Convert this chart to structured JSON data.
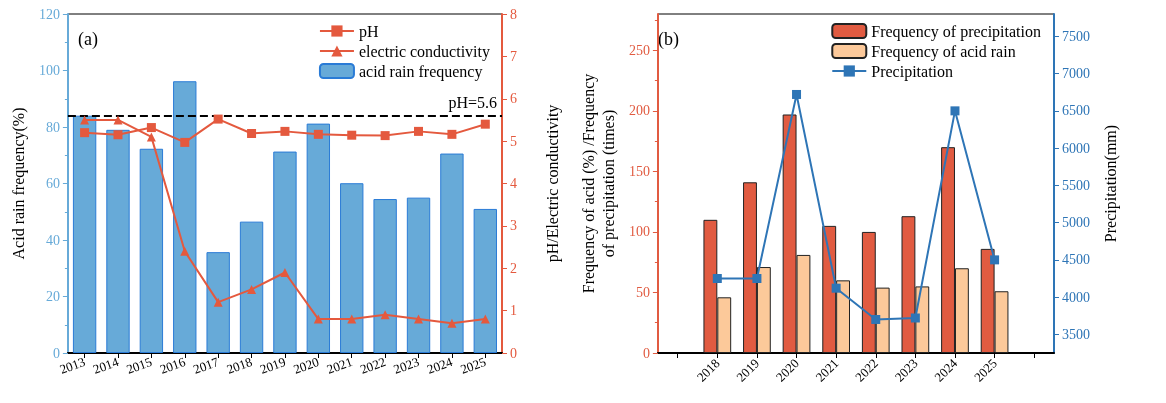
{
  "chart_data": [
    {
      "type": "bar",
      "categories": [
        "2013",
        "2014",
        "2015",
        "2016",
        "2017",
        "2018",
        "2019",
        "2020",
        "2021",
        "2022",
        "2023",
        "2024",
        "2025"
      ],
      "ylabel": "Acid rain frequency(%)",
      "y2label": "pH/Electric conductivity",
      "series": [
        {
          "name": "pH",
          "type": "line",
          "axis": "y2",
          "marker": "square",
          "color": "#e4593e",
          "values": [
            5.2,
            5.15,
            5.32,
            4.97,
            5.52,
            5.18,
            5.23,
            5.16,
            5.14,
            5.13,
            5.23,
            5.16,
            5.4
          ]
        },
        {
          "name": "electric conductivity",
          "type": "line",
          "axis": "y2",
          "marker": "triangle",
          "color": "#e4593e",
          "values": [
            5.5,
            5.5,
            5.1,
            2.4,
            1.2,
            1.5,
            1.9,
            0.8,
            0.8,
            0.9,
            0.8,
            0.7,
            0.8
          ]
        },
        {
          "name": "acid rain frequency",
          "color": "#67aad8",
          "values": [
            84,
            79,
            72.3,
            96.2,
            35.7,
            46.5,
            71.3,
            81.2,
            60.1,
            54.5,
            55,
            70.6,
            51
          ]
        }
      ],
      "ylim": [
        0,
        120
      ],
      "yticks": [
        0,
        20,
        40,
        60,
        80,
        100,
        120
      ],
      "y2lim": [
        0,
        8
      ],
      "y2ticks": [
        0,
        1,
        2,
        3,
        4,
        5,
        6,
        7,
        8
      ],
      "ref_lines": [
        {
          "axis": "y2",
          "value": 5.6,
          "label": "pH=5.6",
          "color": "#000000",
          "line_style": "dashed"
        }
      ],
      "annotations": [
        "(a)"
      ],
      "legend": "top right",
      "grid": false
    },
    {
      "type": "bar",
      "categories": [
        null,
        "2018",
        "2019",
        "2020",
        "2021",
        "2022",
        "2023",
        "2024",
        "2025",
        null
      ],
      "ylabel": "Frequency of acid (%) /Frequency\nof precipitation (times)",
      "y2label": "Precipitation(mm)",
      "series": [
        {
          "name": "Frequency of precipitation",
          "color": "#e15b41",
          "values": [
            null,
            110,
            141,
            197,
            105,
            100,
            113,
            170,
            86,
            null
          ]
        },
        {
          "name": "Frequency of acid rain",
          "color": "#fcc99a",
          "values": [
            null,
            46,
            71,
            81,
            60,
            54,
            55,
            70,
            51,
            null
          ]
        },
        {
          "name": "Precipitation",
          "type": "line",
          "axis": "y2",
          "marker": "square",
          "color": "#2e75b6",
          "values": [
            null,
            4250,
            4250,
            6720,
            4120,
            3700,
            3720,
            6500,
            4500,
            null
          ]
        }
      ],
      "ylim": [
        0,
        280
      ],
      "yticks": [
        0,
        50,
        100,
        150,
        200,
        250
      ],
      "y2lim": [
        3250,
        7800
      ],
      "y2ticks": [
        3500,
        4000,
        4500,
        5000,
        5500,
        6000,
        6500,
        7000,
        7500
      ],
      "annotations": [
        "(b)"
      ],
      "legend": "top right",
      "grid": false
    }
  ]
}
